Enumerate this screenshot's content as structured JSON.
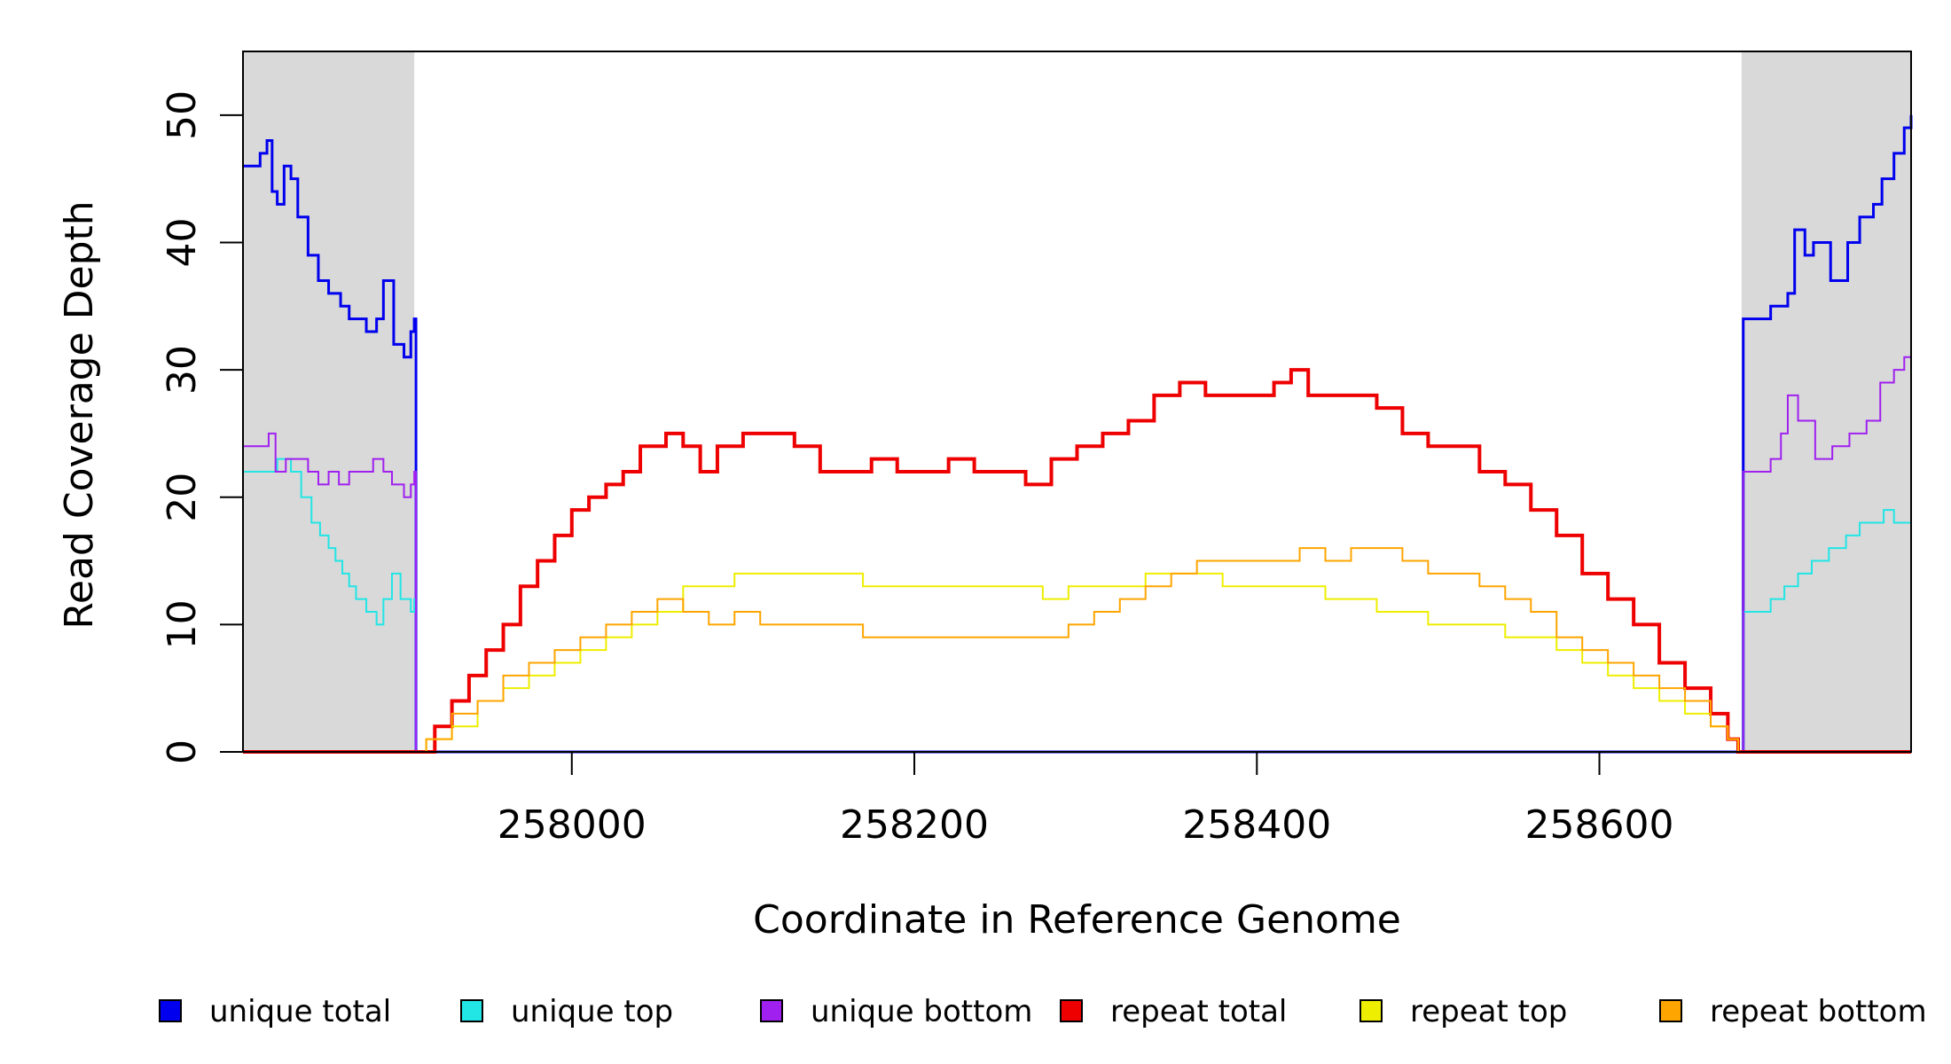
{
  "chart_data": {
    "type": "line",
    "title": "",
    "xlabel": "Coordinate in Reference Genome",
    "ylabel": "Read Coverage Depth",
    "xlim": [
      257808,
      258782
    ],
    "ylim": [
      0,
      55
    ],
    "x_ticks": [
      258000,
      258200,
      258400,
      258600
    ],
    "y_ticks": [
      0,
      10,
      20,
      30,
      40,
      50
    ],
    "x_tick_labels": [
      "258000",
      "258200",
      "258400",
      "258600"
    ],
    "y_tick_labels": [
      "0",
      "10",
      "20",
      "30",
      "40",
      "50"
    ],
    "shaded_regions": [
      {
        "x_start": 257808,
        "x_end": 257908,
        "color": "#d9d9d9"
      },
      {
        "x_start": 258683,
        "x_end": 258782,
        "color": "#d9d9d9"
      }
    ],
    "grid": false,
    "legend_position": "bottom",
    "series": [
      {
        "name": "unique total",
        "color": "#0000ee",
        "x": [
          257808,
          257818,
          257822,
          257825,
          257828,
          257832,
          257836,
          257840,
          257846,
          257852,
          257858,
          257865,
          257870,
          257875,
          257880,
          257886,
          257890,
          257896,
          257902,
          257906,
          257908,
          257909,
          258683,
          258684,
          258690,
          258700,
          258710,
          258714,
          258720,
          258725,
          258735,
          258745,
          258752,
          258760,
          258765,
          258772,
          258778,
          258782
        ],
        "y": [
          46,
          47,
          48,
          44,
          43,
          46,
          45,
          42,
          39,
          37,
          36,
          35,
          34,
          34,
          33,
          34,
          37,
          32,
          31,
          33,
          34,
          0,
          0,
          34,
          34,
          35,
          36,
          41,
          39,
          40,
          37,
          40,
          42,
          43,
          45,
          47,
          49,
          50
        ]
      },
      {
        "name": "unique top",
        "color": "#22e5e5",
        "x": [
          257808,
          257820,
          257828,
          257836,
          257842,
          257848,
          257853,
          257858,
          257862,
          257866,
          257870,
          257874,
          257880,
          257886,
          257890,
          257895,
          257900,
          257906,
          257908,
          257909,
          258683,
          258684,
          258690,
          258700,
          258708,
          258716,
          258724,
          258734,
          258744,
          258752,
          258760,
          258766,
          258772,
          258778,
          258782
        ],
        "y": [
          22,
          22,
          23,
          22,
          20,
          18,
          17,
          16,
          15,
          14,
          13,
          12,
          11,
          10,
          12,
          14,
          12,
          11,
          12,
          0,
          0,
          11,
          11,
          12,
          13,
          14,
          15,
          16,
          17,
          18,
          18,
          19,
          18,
          18,
          17
        ],
        "stroke_width": 2
      },
      {
        "name": "unique bottom",
        "color": "#a020f0",
        "x": [
          257808,
          257820,
          257823,
          257827,
          257833,
          257840,
          257846,
          257852,
          257858,
          257864,
          257870,
          257878,
          257884,
          257890,
          257895,
          257902,
          257906,
          257908,
          257909,
          258683,
          258684,
          258692,
          258700,
          258706,
          258710,
          258716,
          258726,
          258736,
          258746,
          258756,
          258764,
          258772,
          258778,
          258782
        ],
        "y": [
          24,
          24,
          25,
          22,
          23,
          23,
          22,
          21,
          22,
          21,
          22,
          22,
          23,
          22,
          21,
          20,
          21,
          22,
          0,
          0,
          22,
          22,
          23,
          25,
          28,
          26,
          23,
          24,
          25,
          26,
          29,
          30,
          31,
          32
        ],
        "stroke_width": 2
      },
      {
        "name": "repeat total",
        "color": "#ee0000",
        "x": [
          257808,
          257908,
          257910,
          257920,
          257930,
          257940,
          257950,
          257960,
          257970,
          257980,
          257990,
          258000,
          258010,
          258020,
          258030,
          258040,
          258055,
          258065,
          258075,
          258085,
          258100,
          258115,
          258130,
          258145,
          258160,
          258175,
          258190,
          258205,
          258220,
          258235,
          258250,
          258265,
          258280,
          258295,
          258310,
          258325,
          258340,
          258355,
          258370,
          258385,
          258400,
          258410,
          258420,
          258430,
          258440,
          258455,
          258470,
          258485,
          258500,
          258515,
          258530,
          258545,
          258560,
          258575,
          258590,
          258605,
          258620,
          258635,
          258650,
          258665,
          258675,
          258680,
          258681,
          258782
        ],
        "y": [
          0,
          0,
          0,
          2,
          4,
          6,
          8,
          10,
          13,
          15,
          17,
          19,
          20,
          21,
          22,
          24,
          25,
          24,
          22,
          24,
          25,
          25,
          24,
          22,
          22,
          23,
          22,
          22,
          23,
          22,
          22,
          21,
          23,
          24,
          25,
          26,
          28,
          29,
          28,
          28,
          28,
          29,
          30,
          28,
          28,
          28,
          27,
          25,
          24,
          24,
          22,
          21,
          19,
          17,
          14,
          12,
          10,
          7,
          5,
          3,
          1,
          1,
          0,
          0
        ],
        "stroke_width": 4
      },
      {
        "name": "repeat top",
        "color": "#eeee00",
        "x": [
          257808,
          257908,
          257915,
          257930,
          257945,
          257960,
          257975,
          257990,
          258005,
          258020,
          258035,
          258050,
          258065,
          258080,
          258095,
          258110,
          258125,
          258140,
          258155,
          258170,
          258185,
          258200,
          258215,
          258230,
          258245,
          258260,
          258275,
          258290,
          258305,
          258320,
          258335,
          258350,
          258365,
          258380,
          258395,
          258410,
          258425,
          258440,
          258455,
          258470,
          258485,
          258500,
          258515,
          258530,
          258545,
          258560,
          258575,
          258590,
          258605,
          258620,
          258635,
          258650,
          258665,
          258675,
          258681,
          258782
        ],
        "y": [
          0,
          0,
          1,
          2,
          4,
          5,
          6,
          7,
          8,
          9,
          10,
          11,
          13,
          13,
          14,
          14,
          14,
          14,
          14,
          13,
          13,
          13,
          13,
          13,
          13,
          13,
          12,
          13,
          13,
          13,
          14,
          14,
          14,
          13,
          13,
          13,
          13,
          12,
          12,
          11,
          11,
          10,
          10,
          10,
          9,
          9,
          8,
          7,
          6,
          5,
          4,
          3,
          2,
          1,
          0,
          0
        ],
        "stroke_width": 2
      },
      {
        "name": "repeat bottom",
        "color": "#ffa500",
        "x": [
          257808,
          257908,
          257915,
          257930,
          257945,
          257960,
          257975,
          257990,
          258005,
          258020,
          258035,
          258050,
          258065,
          258080,
          258095,
          258110,
          258125,
          258140,
          258155,
          258170,
          258185,
          258200,
          258215,
          258230,
          258245,
          258260,
          258275,
          258290,
          258305,
          258320,
          258335,
          258350,
          258365,
          258380,
          258395,
          258410,
          258425,
          258440,
          258455,
          258470,
          258485,
          258500,
          258515,
          258530,
          258545,
          258560,
          258575,
          258590,
          258605,
          258620,
          258635,
          258650,
          258665,
          258675,
          258681,
          258782
        ],
        "y": [
          0,
          0,
          1,
          3,
          4,
          6,
          7,
          8,
          9,
          10,
          11,
          12,
          11,
          10,
          11,
          10,
          10,
          10,
          10,
          9,
          9,
          9,
          9,
          9,
          9,
          9,
          9,
          10,
          11,
          12,
          13,
          14,
          15,
          15,
          15,
          15,
          16,
          15,
          16,
          16,
          15,
          14,
          14,
          13,
          12,
          11,
          9,
          8,
          7,
          6,
          5,
          4,
          2,
          1,
          0,
          0
        ],
        "stroke_width": 2
      }
    ]
  }
}
